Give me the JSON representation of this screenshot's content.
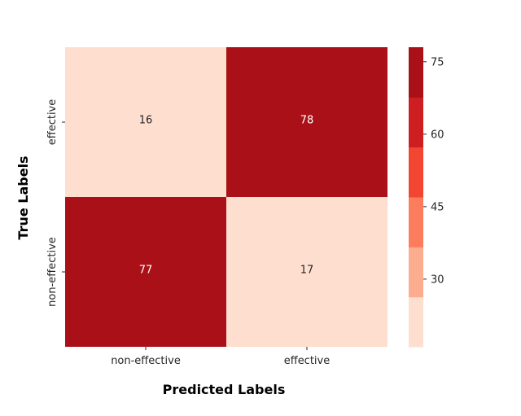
{
  "chart_data": {
    "type": "heatmap",
    "title": "",
    "xlabel": "Predicted Labels",
    "ylabel": "True Labels",
    "x_categories": [
      "non-effective",
      "effective"
    ],
    "y_categories": [
      "effective",
      "non-effective"
    ],
    "values": [
      [
        16,
        78
      ],
      [
        77,
        17
      ]
    ],
    "colorbar": {
      "ticks": [
        30,
        45,
        60,
        75
      ],
      "range": [
        16,
        78
      ],
      "bins": 6,
      "colors": [
        "#fedecf",
        "#fcad90",
        "#fb7d5d",
        "#f24633",
        "#cd1f21",
        "#aa1017"
      ]
    },
    "annotation_colors": {
      "light_cell": "#262626",
      "dark_cell": "#ffffff"
    }
  }
}
